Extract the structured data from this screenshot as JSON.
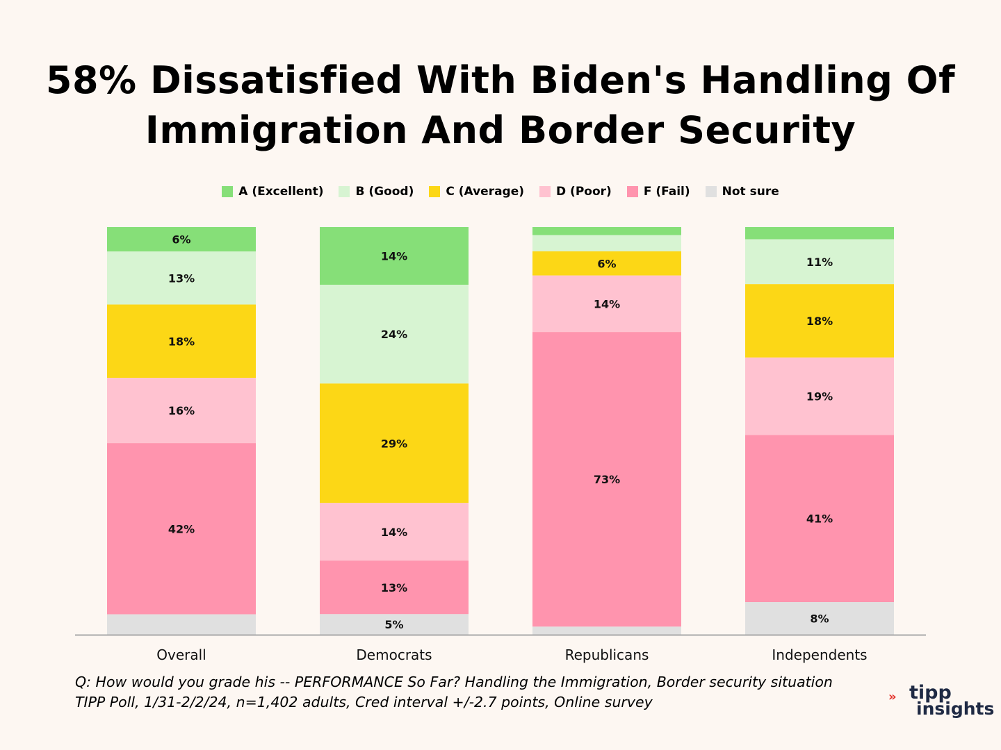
{
  "title_line1": "58% Dissatisfied With Biden's Handling Of",
  "title_line2": "Immigration And Border Security",
  "legend": [
    {
      "label": "A (Excellent)",
      "color": "#86df78"
    },
    {
      "label": "B (Good)",
      "color": "#d7f4d2"
    },
    {
      "label": "C (Average)",
      "color": "#fcd716"
    },
    {
      "label": "D (Poor)",
      "color": "#ffc2d0"
    },
    {
      "label": "F (Fail)",
      "color": "#ff94ae"
    },
    {
      "label": "Not sure",
      "color": "#e0e0e0"
    }
  ],
  "chart_data": {
    "type": "bar",
    "stacked": true,
    "orientation": "vertical",
    "categories": [
      "Overall",
      "Democrats",
      "Republicans",
      "Independents"
    ],
    "series": [
      {
        "name": "A (Excellent)",
        "color": "#86df78",
        "values": [
          6,
          14,
          2,
          3
        ],
        "labels": [
          "6%",
          "14%",
          "",
          ""
        ]
      },
      {
        "name": "B (Good)",
        "color": "#d7f4d2",
        "values": [
          13,
          24,
          4,
          11
        ],
        "labels": [
          "13%",
          "24%",
          "",
          "11%"
        ]
      },
      {
        "name": "C (Average)",
        "color": "#fcd716",
        "values": [
          18,
          29,
          6,
          18
        ],
        "labels": [
          "18%",
          "29%",
          "6%",
          "18%"
        ]
      },
      {
        "name": "D (Poor)",
        "color": "#ffc2d0",
        "values": [
          16,
          14,
          14,
          19
        ],
        "labels": [
          "16%",
          "14%",
          "14%",
          "19%"
        ]
      },
      {
        "name": "F (Fail)",
        "color": "#ff94ae",
        "values": [
          42,
          13,
          73,
          41
        ],
        "labels": [
          "42%",
          "13%",
          "73%",
          "41%"
        ]
      },
      {
        "name": "Not sure",
        "color": "#e0e0e0",
        "values": [
          5,
          5,
          2,
          8
        ],
        "labels": [
          "",
          "5%",
          "",
          "8%"
        ]
      }
    ],
    "legend_position": "top-center",
    "grid": false
  },
  "footnote_line1": "Q:  How would you grade his -- PERFORMANCE So Far? Handling the Immigration, Border security situation",
  "footnote_line2": "TIPP Poll, 1/31-2/2/24, n=1,402 adults, Cred interval +/-2.7 points, Online survey",
  "logo": {
    "line1": "tipp",
    "line2": "insights",
    "mark": "»"
  }
}
